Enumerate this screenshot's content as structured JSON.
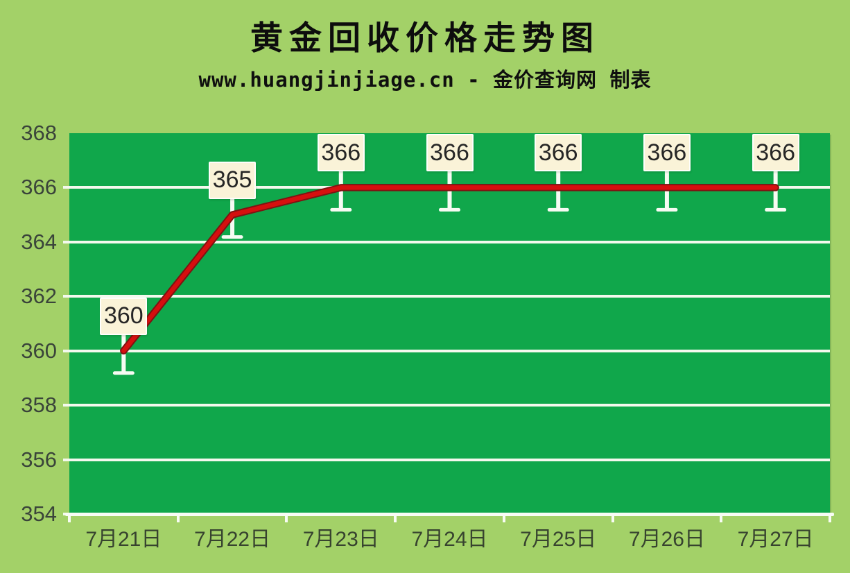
{
  "chart_data": {
    "type": "line",
    "title": "黄金回收价格走势图",
    "subtitle": "www.huangjinjiage.cn - 金价查询网 制表",
    "categories": [
      "7月21日",
      "7月22日",
      "7月23日",
      "7月24日",
      "7月25日",
      "7月26日",
      "7月27日"
    ],
    "values": [
      360,
      365,
      366,
      366,
      366,
      366,
      366
    ],
    "data_labels": [
      "360",
      "365",
      "366",
      "366",
      "366",
      "366",
      "366"
    ],
    "ylim": [
      354,
      368
    ],
    "yticks": [
      354,
      356,
      358,
      360,
      362,
      364,
      366,
      368
    ],
    "grid": true,
    "legend_position": "none",
    "colors": {
      "background": "#a3d168",
      "plot_background": "#10a74b",
      "gridline": "#f4f9ee",
      "line": "#c00000",
      "line_core": "#d60f0f",
      "line_edge": "#7f1212",
      "whisker": "#f7fbf3",
      "callout_fill": "#faf3d8",
      "callout_text": "#262626",
      "axis_text": "#3a443a",
      "title_text": "#0d0d0d"
    }
  }
}
